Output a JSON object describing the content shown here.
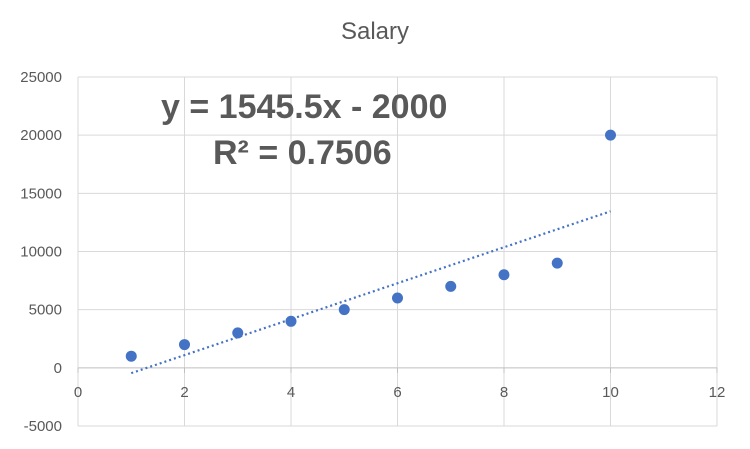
{
  "chart_data": {
    "type": "scatter",
    "title": "Salary",
    "xlabel": "",
    "ylabel": "",
    "xlim": [
      0,
      12
    ],
    "ylim": [
      -5000,
      25000
    ],
    "x_ticks": [
      "0",
      "2",
      "4",
      "6",
      "8",
      "10",
      "12"
    ],
    "y_ticks": [
      "-5000",
      "0",
      "5000",
      "10000",
      "15000",
      "20000",
      "25000"
    ],
    "grid": true,
    "legend": "none",
    "series": [
      {
        "x": [
          1,
          2,
          3,
          4,
          5,
          6,
          7,
          8,
          9,
          10
        ],
        "y": [
          1000,
          2000,
          3000,
          4000,
          5000,
          6000,
          7000,
          8000,
          9000,
          20000
        ],
        "color": "#4472C4"
      }
    ],
    "trendline": {
      "type": "linear",
      "slope": 1545.5,
      "intercept": -2000,
      "x_range": [
        1,
        10
      ],
      "style": "dotted",
      "color": "#4472C4",
      "equation_label": "y = 1545.5x - 2000",
      "r2_label": "R² = 0.7506"
    },
    "colors": {
      "marker": "#4472C4",
      "grid": "#d9d9d9",
      "text": "#595959"
    }
  }
}
